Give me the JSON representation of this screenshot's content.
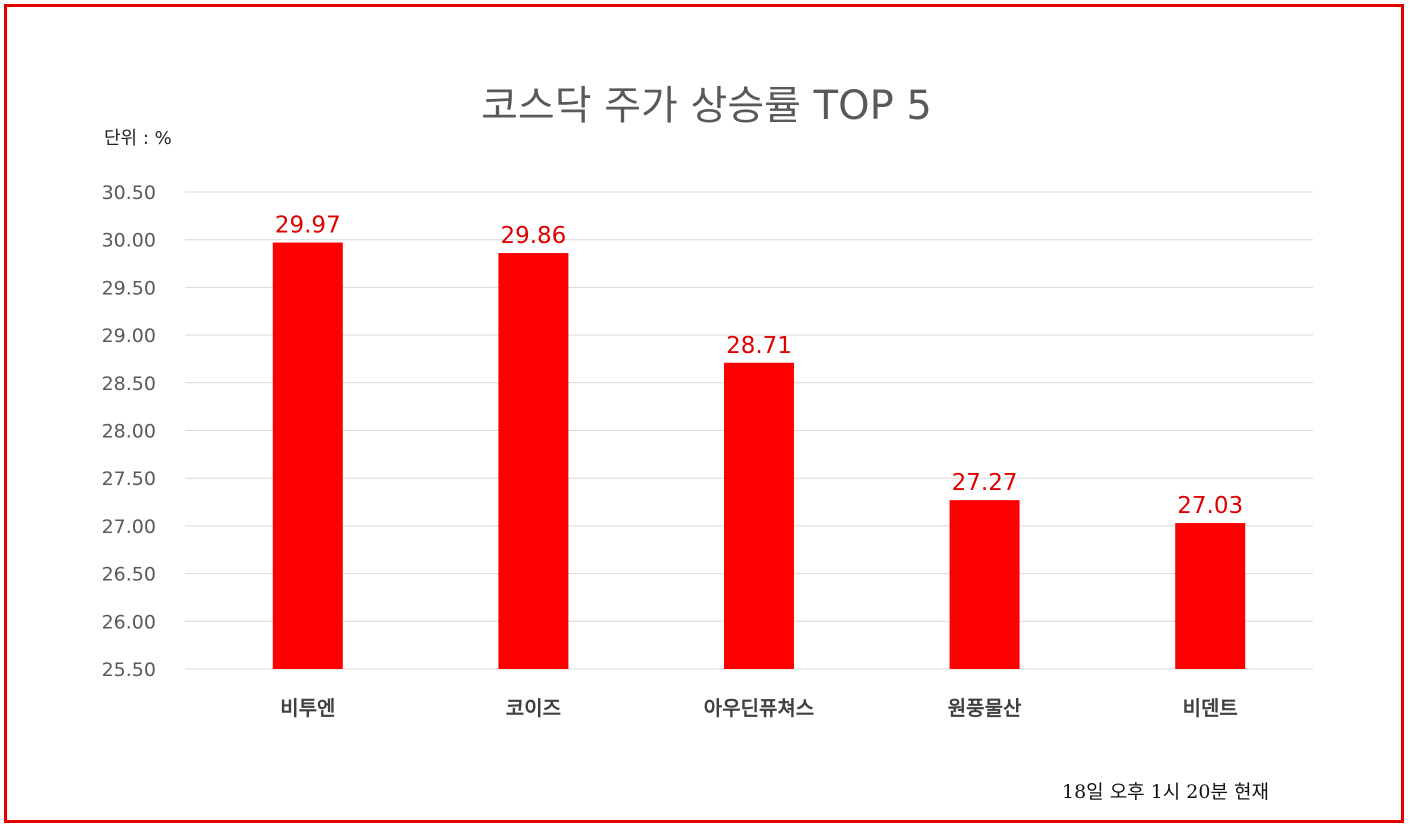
{
  "chart_data": {
    "type": "bar",
    "title": "코스닥 주가 상승률 TOP 5",
    "unit_label": "단위 : %",
    "note": "18일  오후 1시 20분 현재",
    "categories": [
      "비투엔",
      "코이즈",
      "아우딘퓨쳐스",
      "원풍물산",
      "비덴트"
    ],
    "values": [
      29.97,
      29.86,
      28.71,
      27.27,
      27.03
    ],
    "value_labels": [
      "29.97",
      "29.86",
      "28.71",
      "27.27",
      "27.03"
    ],
    "ylim": [
      25.5,
      30.5
    ],
    "yticks": [
      "25.50",
      "26.00",
      "26.50",
      "27.00",
      "27.50",
      "28.00",
      "28.50",
      "29.00",
      "29.50",
      "30.00",
      "30.50"
    ],
    "grid": true,
    "legend": "none",
    "bar_color": "#ff0000",
    "label_color": "#e00000",
    "frame_color": "#e30000"
  }
}
